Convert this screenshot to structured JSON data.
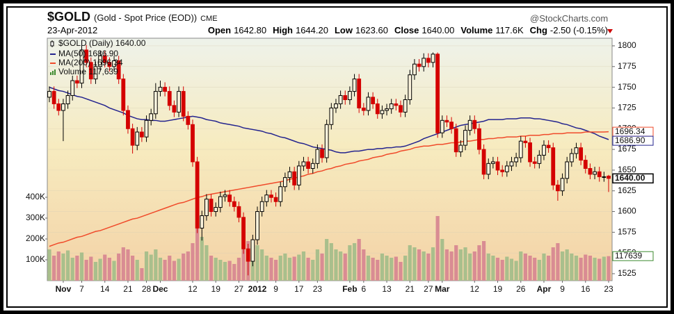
{
  "header": {
    "symbol": "$GOLD",
    "description": "(Gold - Spot Price (EOD))",
    "exchange": "CME",
    "source": "@StockCharts.com",
    "date": "23-Apr-2012",
    "quote": [
      {
        "label": "Open",
        "value": "1642.80"
      },
      {
        "label": "High",
        "value": "1644.20"
      },
      {
        "label": "Low",
        "value": "1623.60"
      },
      {
        "label": "Close",
        "value": "1640.00"
      },
      {
        "label": "Volume",
        "value": "117.6K"
      },
      {
        "label": "Chg",
        "value": "-2.50 (-0.15%)"
      }
    ]
  },
  "chart_data": {
    "type": "candlestick",
    "categories": [
      null,
      null,
      null,
      "Nov",
      null,
      null,
      null,
      "7",
      null,
      null,
      null,
      null,
      "14",
      null,
      null,
      null,
      null,
      "21",
      null,
      null,
      null,
      "28",
      null,
      null,
      "Dec",
      null,
      null,
      null,
      null,
      null,
      null,
      "12",
      null,
      null,
      null,
      null,
      "19",
      null,
      null,
      null,
      null,
      "27",
      null,
      null,
      null,
      "2012",
      null,
      null,
      null,
      "9",
      null,
      null,
      null,
      null,
      "17",
      null,
      null,
      null,
      "23",
      null,
      null,
      null,
      null,
      null,
      null,
      "Feb",
      null,
      null,
      "6",
      null,
      null,
      null,
      null,
      "13",
      null,
      null,
      null,
      null,
      "21",
      null,
      null,
      null,
      "27",
      null,
      null,
      "Mar",
      null,
      null,
      null,
      null,
      null,
      null,
      "12",
      null,
      null,
      null,
      null,
      "19",
      null,
      null,
      null,
      null,
      "26",
      null,
      null,
      null,
      null,
      "Apr",
      null,
      null,
      null,
      "9",
      null,
      null,
      null,
      null,
      "16",
      null,
      null,
      null,
      null,
      "23"
    ],
    "series": [
      {
        "name": "$GOLD (Daily) 1640.00",
        "type": "candlestick",
        "color": "#000000",
        "up_color": "#000000",
        "down_color": "#d40000",
        "end_label": "1640.00",
        "open": [
          1738,
          1745,
          1730,
          1722,
          1730,
          1740,
          1758,
          1755,
          1795,
          1780,
          1760,
          1775,
          1788,
          1780,
          1775,
          1782,
          1760,
          1722,
          1700,
          1680,
          1696,
          1690,
          1710,
          1718,
          1745,
          1750,
          1745,
          1728,
          1720,
          1745,
          1715,
          1705,
          1660,
          1580,
          1595,
          1615,
          1600,
          1605,
          1618,
          1620,
          1612,
          1606,
          1593,
          1555,
          1540,
          1566,
          1600,
          1612,
          1620,
          1617,
          1612,
          1630,
          1641,
          1648,
          1632,
          1655,
          1660,
          1652,
          1658,
          1675,
          1665,
          1705,
          1725,
          1730,
          1740,
          1735,
          1745,
          1760,
          1725,
          1722,
          1738,
          1730,
          1718,
          1722,
          1724,
          1730,
          1728,
          1720,
          1735,
          1765,
          1778,
          1775,
          1785,
          1780,
          1790,
          1695,
          1710,
          1708,
          1700,
          1672,
          1680,
          1698,
          1710,
          1700,
          1675,
          1645,
          1658,
          1660,
          1650,
          1648,
          1655,
          1660,
          1665,
          1685,
          1683,
          1660,
          1658,
          1668,
          1680,
          1677,
          1632,
          1625,
          1640,
          1660,
          1670,
          1677,
          1662,
          1652,
          1645,
          1648,
          1642,
          1642.8
        ],
        "high": [
          1751,
          1751,
          1736,
          1736,
          1746,
          1764,
          1764,
          1801,
          1801,
          1786,
          1781,
          1794,
          1794,
          1786,
          1788,
          1788,
          1766,
          1728,
          1706,
          1702,
          1702,
          1716,
          1724,
          1755,
          1758,
          1756,
          1751,
          1734,
          1751,
          1751,
          1721,
          1711,
          1666,
          1601,
          1621,
          1621,
          1611,
          1624,
          1626,
          1626,
          1618,
          1612,
          1599,
          1561,
          1572,
          1606,
          1618,
          1626,
          1626,
          1623,
          1636,
          1647,
          1654,
          1654,
          1661,
          1666,
          1666,
          1664,
          1681,
          1681,
          1711,
          1731,
          1736,
          1746,
          1746,
          1751,
          1766,
          1766,
          1731,
          1744,
          1744,
          1736,
          1728,
          1730,
          1736,
          1736,
          1734,
          1741,
          1771,
          1784,
          1784,
          1791,
          1791,
          1792,
          1792,
          1716,
          1716,
          1714,
          1706,
          1686,
          1704,
          1716,
          1716,
          1706,
          1681,
          1664,
          1666,
          1666,
          1656,
          1661,
          1666,
          1671,
          1691,
          1691,
          1689,
          1666,
          1674,
          1686,
          1686,
          1683,
          1638,
          1646,
          1666,
          1676,
          1683,
          1683,
          1668,
          1658,
          1654,
          1654,
          1648,
          1644.2
        ],
        "low": [
          1732,
          1724,
          1716,
          1685,
          1724,
          1734,
          1749,
          1749,
          1774,
          1754,
          1754,
          1769,
          1774,
          1769,
          1769,
          1754,
          1716,
          1694,
          1670,
          1674,
          1684,
          1684,
          1704,
          1712,
          1739,
          1739,
          1722,
          1714,
          1714,
          1709,
          1699,
          1654,
          1574,
          1565,
          1589,
          1594,
          1594,
          1599,
          1612,
          1606,
          1600,
          1587,
          1549,
          1523,
          1534,
          1560,
          1594,
          1606,
          1611,
          1606,
          1606,
          1624,
          1635,
          1626,
          1626,
          1649,
          1646,
          1646,
          1652,
          1659,
          1659,
          1699,
          1719,
          1724,
          1729,
          1729,
          1739,
          1719,
          1716,
          1716,
          1724,
          1712,
          1712,
          1716,
          1718,
          1722,
          1714,
          1714,
          1729,
          1759,
          1769,
          1769,
          1774,
          1774,
          1689,
          1689,
          1702,
          1694,
          1666,
          1666,
          1674,
          1692,
          1694,
          1669,
          1639,
          1639,
          1652,
          1644,
          1642,
          1642,
          1649,
          1654,
          1659,
          1677,
          1654,
          1652,
          1652,
          1662,
          1671,
          1626,
          1613,
          1619,
          1634,
          1654,
          1664,
          1656,
          1646,
          1639,
          1639,
          1636,
          1636,
          1623.6
        ],
        "close": [
          1745,
          1730,
          1722,
          1730,
          1740,
          1758,
          1755,
          1795,
          1780,
          1760,
          1775,
          1788,
          1780,
          1775,
          1782,
          1760,
          1722,
          1700,
          1680,
          1696,
          1690,
          1710,
          1718,
          1745,
          1750,
          1745,
          1728,
          1720,
          1745,
          1715,
          1705,
          1660,
          1580,
          1595,
          1615,
          1600,
          1605,
          1618,
          1620,
          1612,
          1606,
          1593,
          1555,
          1540,
          1566,
          1600,
          1612,
          1620,
          1617,
          1612,
          1630,
          1641,
          1648,
          1632,
          1655,
          1660,
          1652,
          1658,
          1675,
          1665,
          1705,
          1725,
          1730,
          1740,
          1735,
          1745,
          1760,
          1725,
          1722,
          1738,
          1730,
          1718,
          1722,
          1724,
          1730,
          1728,
          1720,
          1735,
          1765,
          1778,
          1775,
          1785,
          1780,
          1790,
          1695,
          1710,
          1708,
          1700,
          1672,
          1680,
          1698,
          1710,
          1700,
          1675,
          1645,
          1658,
          1660,
          1650,
          1648,
          1655,
          1660,
          1665,
          1685,
          1683,
          1660,
          1658,
          1668,
          1680,
          1677,
          1632,
          1625,
          1640,
          1660,
          1670,
          1677,
          1662,
          1652,
          1645,
          1648,
          1642,
          1642,
          1640
        ]
      },
      {
        "name": "MA(50) 1686.90",
        "type": "line",
        "color": "#23238e",
        "end_label": "1686.90",
        "values": [
          1750,
          1748,
          1746,
          1745,
          1743,
          1741,
          1739,
          1738,
          1736,
          1734,
          1732,
          1730,
          1728,
          1725,
          1723,
          1721,
          1719,
          1716,
          1714,
          1712,
          1711,
          1711,
          1710,
          1710,
          1709,
          1709,
          1710,
          1711,
          1712,
          1713,
          1714,
          1715,
          1714,
          1713,
          1711,
          1710,
          1709,
          1707,
          1706,
          1705,
          1704,
          1703,
          1701,
          1700,
          1699,
          1698,
          1697,
          1695,
          1694,
          1692,
          1690,
          1689,
          1687,
          1685,
          1683,
          1682,
          1680,
          1678,
          1677,
          1676,
          1675,
          1674,
          1672,
          1671,
          1671,
          1672,
          1673,
          1673,
          1674,
          1675,
          1675,
          1676,
          1676,
          1677,
          1677,
          1678,
          1678,
          1679,
          1681,
          1683,
          1685,
          1688,
          1690,
          1692,
          1694,
          1696,
          1698,
          1700,
          1702,
          1704,
          1705,
          1706,
          1707,
          1708,
          1709,
          1711,
          1711,
          1711,
          1711,
          1712,
          1712,
          1712,
          1713,
          1713,
          1713,
          1712,
          1712,
          1711,
          1710,
          1709,
          1708,
          1706,
          1705,
          1703,
          1701,
          1700,
          1698,
          1696,
          1694,
          1691,
          1689,
          1686.9
        ]
      },
      {
        "name": "MA(200) 1696.34",
        "type": "line",
        "color": "#f04a2a",
        "end_label": "1696.34",
        "values": [
          1558,
          1560,
          1562,
          1563,
          1565,
          1567,
          1569,
          1570,
          1572,
          1574,
          1576,
          1577,
          1579,
          1581,
          1583,
          1585,
          1587,
          1589,
          1591,
          1592,
          1594,
          1596,
          1598,
          1600,
          1602,
          1604,
          1606,
          1608,
          1610,
          1611,
          1613,
          1615,
          1617,
          1618,
          1620,
          1621,
          1622,
          1623,
          1624,
          1625,
          1626,
          1627,
          1628,
          1629,
          1630,
          1631,
          1632,
          1633,
          1634,
          1635,
          1636,
          1637,
          1639,
          1640,
          1642,
          1643,
          1645,
          1646,
          1648,
          1649,
          1651,
          1652,
          1654,
          1655,
          1657,
          1658,
          1659,
          1661,
          1662,
          1663,
          1665,
          1666,
          1667,
          1669,
          1670,
          1671,
          1673,
          1674,
          1675,
          1677,
          1678,
          1679,
          1679,
          1680,
          1681,
          1681,
          1682,
          1683,
          1683,
          1684,
          1685,
          1685,
          1686,
          1687,
          1687,
          1688,
          1688,
          1689,
          1689,
          1690,
          1690,
          1690,
          1691,
          1691,
          1692,
          1692,
          1692,
          1693,
          1693,
          1694,
          1694,
          1694,
          1695,
          1695,
          1695,
          1695,
          1696,
          1696,
          1696,
          1696,
          1696,
          1696.34
        ]
      },
      {
        "name": "Volume 117,639",
        "type": "volume",
        "axis": "y2",
        "color": "#3c8a2e",
        "up_color": "#a9bf8c",
        "down_color": "#d98c93",
        "end_label": "117639",
        "values": [
          150000,
          120000,
          140000,
          130000,
          145000,
          110000,
          120000,
          135000,
          100000,
          115000,
          90000,
          105000,
          125000,
          110000,
          95000,
          130000,
          160000,
          150000,
          120000,
          100000,
          60000,
          140000,
          125000,
          150000,
          110000,
          100000,
          120000,
          95000,
          105000,
          130000,
          140000,
          180000,
          250000,
          210000,
          170000,
          120000,
          110000,
          100000,
          90000,
          95000,
          80000,
          110000,
          160000,
          190000,
          130000,
          170000,
          150000,
          120000,
          110000,
          100000,
          120000,
          130000,
          110000,
          115000,
          125000,
          140000,
          110000,
          100000,
          150000,
          130000,
          200000,
          180000,
          150000,
          140000,
          130000,
          170000,
          180000,
          200000,
          150000,
          120000,
          110000,
          100000,
          130000,
          120000,
          110000,
          115000,
          90000,
          120000,
          170000,
          160000,
          150000,
          140000,
          130000,
          160000,
          310000,
          200000,
          150000,
          140000,
          170000,
          150000,
          160000,
          130000,
          140000,
          170000,
          190000,
          130000,
          120000,
          110000,
          100000,
          115000,
          105000,
          95000,
          140000,
          130000,
          120000,
          110000,
          100000,
          130000,
          120000,
          160000,
          180000,
          140000,
          150000,
          130000,
          120000,
          110000,
          125000,
          120000,
          110000,
          105000,
          115000,
          117639
        ]
      }
    ],
    "ylim": [
      1516.6,
      1809.2
    ],
    "yticks": [
      1525,
      1550,
      1575,
      1600,
      1625,
      1650,
      1675,
      1700,
      1725,
      1750,
      1775,
      1800
    ],
    "y2lim": [
      0,
      1163000
    ],
    "y2ticks": [
      {
        "value": 100000,
        "label": "100K"
      },
      {
        "value": 200000,
        "label": "200K"
      },
      {
        "value": 300000,
        "label": "300K"
      },
      {
        "value": 400000,
        "label": "400K"
      }
    ],
    "grid": true,
    "legend": "top-left"
  }
}
